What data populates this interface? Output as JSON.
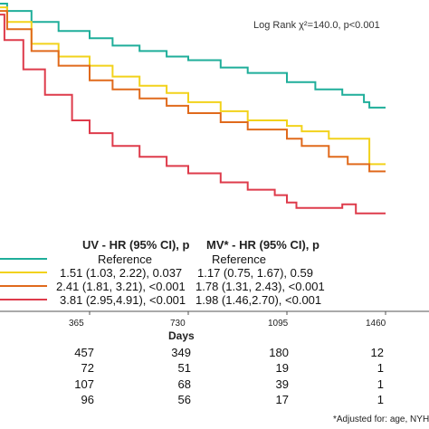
{
  "chart_data": {
    "type": "line",
    "subtype": "kaplan-meier",
    "title": "",
    "xlabel": "Days",
    "ylabel": "",
    "xlim": [
      0,
      1460
    ],
    "ylim": [
      0.35,
      1.0
    ],
    "x_ticks": [
      "365",
      "730",
      "1095",
      "1460"
    ],
    "x_tick_values": [
      365,
      730,
      1095,
      1460
    ],
    "annotation": "Log Rank χ²=140.0, p<0.001",
    "series": [
      {
        "color": "#1fae9a",
        "x": [
          0,
          60,
          150,
          250,
          365,
          450,
          550,
          650,
          730,
          850,
          950,
          1095,
          1200,
          1300,
          1380,
          1400,
          1460
        ],
        "y": [
          0.99,
          0.97,
          0.94,
          0.915,
          0.895,
          0.875,
          0.86,
          0.845,
          0.835,
          0.815,
          0.8,
          0.775,
          0.755,
          0.74,
          0.72,
          0.705,
          0.705
        ]
      },
      {
        "color": "#f2d21b",
        "x": [
          0,
          60,
          150,
          250,
          365,
          450,
          550,
          650,
          730,
          850,
          950,
          1095,
          1150,
          1250,
          1320,
          1400,
          1460
        ],
        "y": [
          0.98,
          0.94,
          0.88,
          0.845,
          0.82,
          0.79,
          0.765,
          0.745,
          0.72,
          0.695,
          0.67,
          0.655,
          0.64,
          0.62,
          0.62,
          0.55,
          0.55
        ]
      },
      {
        "color": "#e06a1c",
        "x": [
          0,
          60,
          150,
          250,
          365,
          450,
          550,
          650,
          730,
          850,
          950,
          1095,
          1150,
          1250,
          1320,
          1400,
          1460
        ],
        "y": [
          0.97,
          0.92,
          0.86,
          0.82,
          0.78,
          0.755,
          0.73,
          0.71,
          0.69,
          0.665,
          0.645,
          0.62,
          0.6,
          0.57,
          0.55,
          0.53,
          0.53
        ]
      },
      {
        "color": "#de3b4b",
        "x": [
          0,
          50,
          120,
          200,
          300,
          365,
          450,
          550,
          650,
          730,
          850,
          950,
          1050,
          1095,
          1130,
          1200,
          1300,
          1350,
          1460
        ],
        "y": [
          0.96,
          0.89,
          0.81,
          0.74,
          0.67,
          0.635,
          0.6,
          0.57,
          0.545,
          0.525,
          0.5,
          0.48,
          0.465,
          0.445,
          0.43,
          0.43,
          0.44,
          0.415,
          0.415
        ]
      }
    ]
  },
  "table": {
    "uv_header": "UV - HR (95% CI), p",
    "mv_header": "MV* - HR (95% CI), p",
    "rows": [
      {
        "color": "#1fae9a",
        "uv": "Reference",
        "mv": "Reference"
      },
      {
        "color": "#f2d21b",
        "uv": "1.51 (1.03, 2.22), 0.037",
        "mv": "1.17 (0.75, 1.67), 0.59"
      },
      {
        "color": "#e06a1c",
        "uv": "2.41 (1.81, 3.21), <0.001",
        "mv": "1.78 (1.31, 2.43), <0.001"
      },
      {
        "color": "#de3b4b",
        "uv": "3.81 (2.95,4.91), <0.001",
        "mv": "1.98 (1.46,2.70), <0.001"
      }
    ]
  },
  "risk_table": {
    "rows": [
      [
        "457",
        "349",
        "180",
        "12"
      ],
      [
        "72",
        "51",
        "19",
        "1"
      ],
      [
        "107",
        "68",
        "39",
        "1"
      ],
      [
        "96",
        "56",
        "17",
        "1"
      ]
    ]
  },
  "footnote": "*Adjusted for: age, NYHA"
}
